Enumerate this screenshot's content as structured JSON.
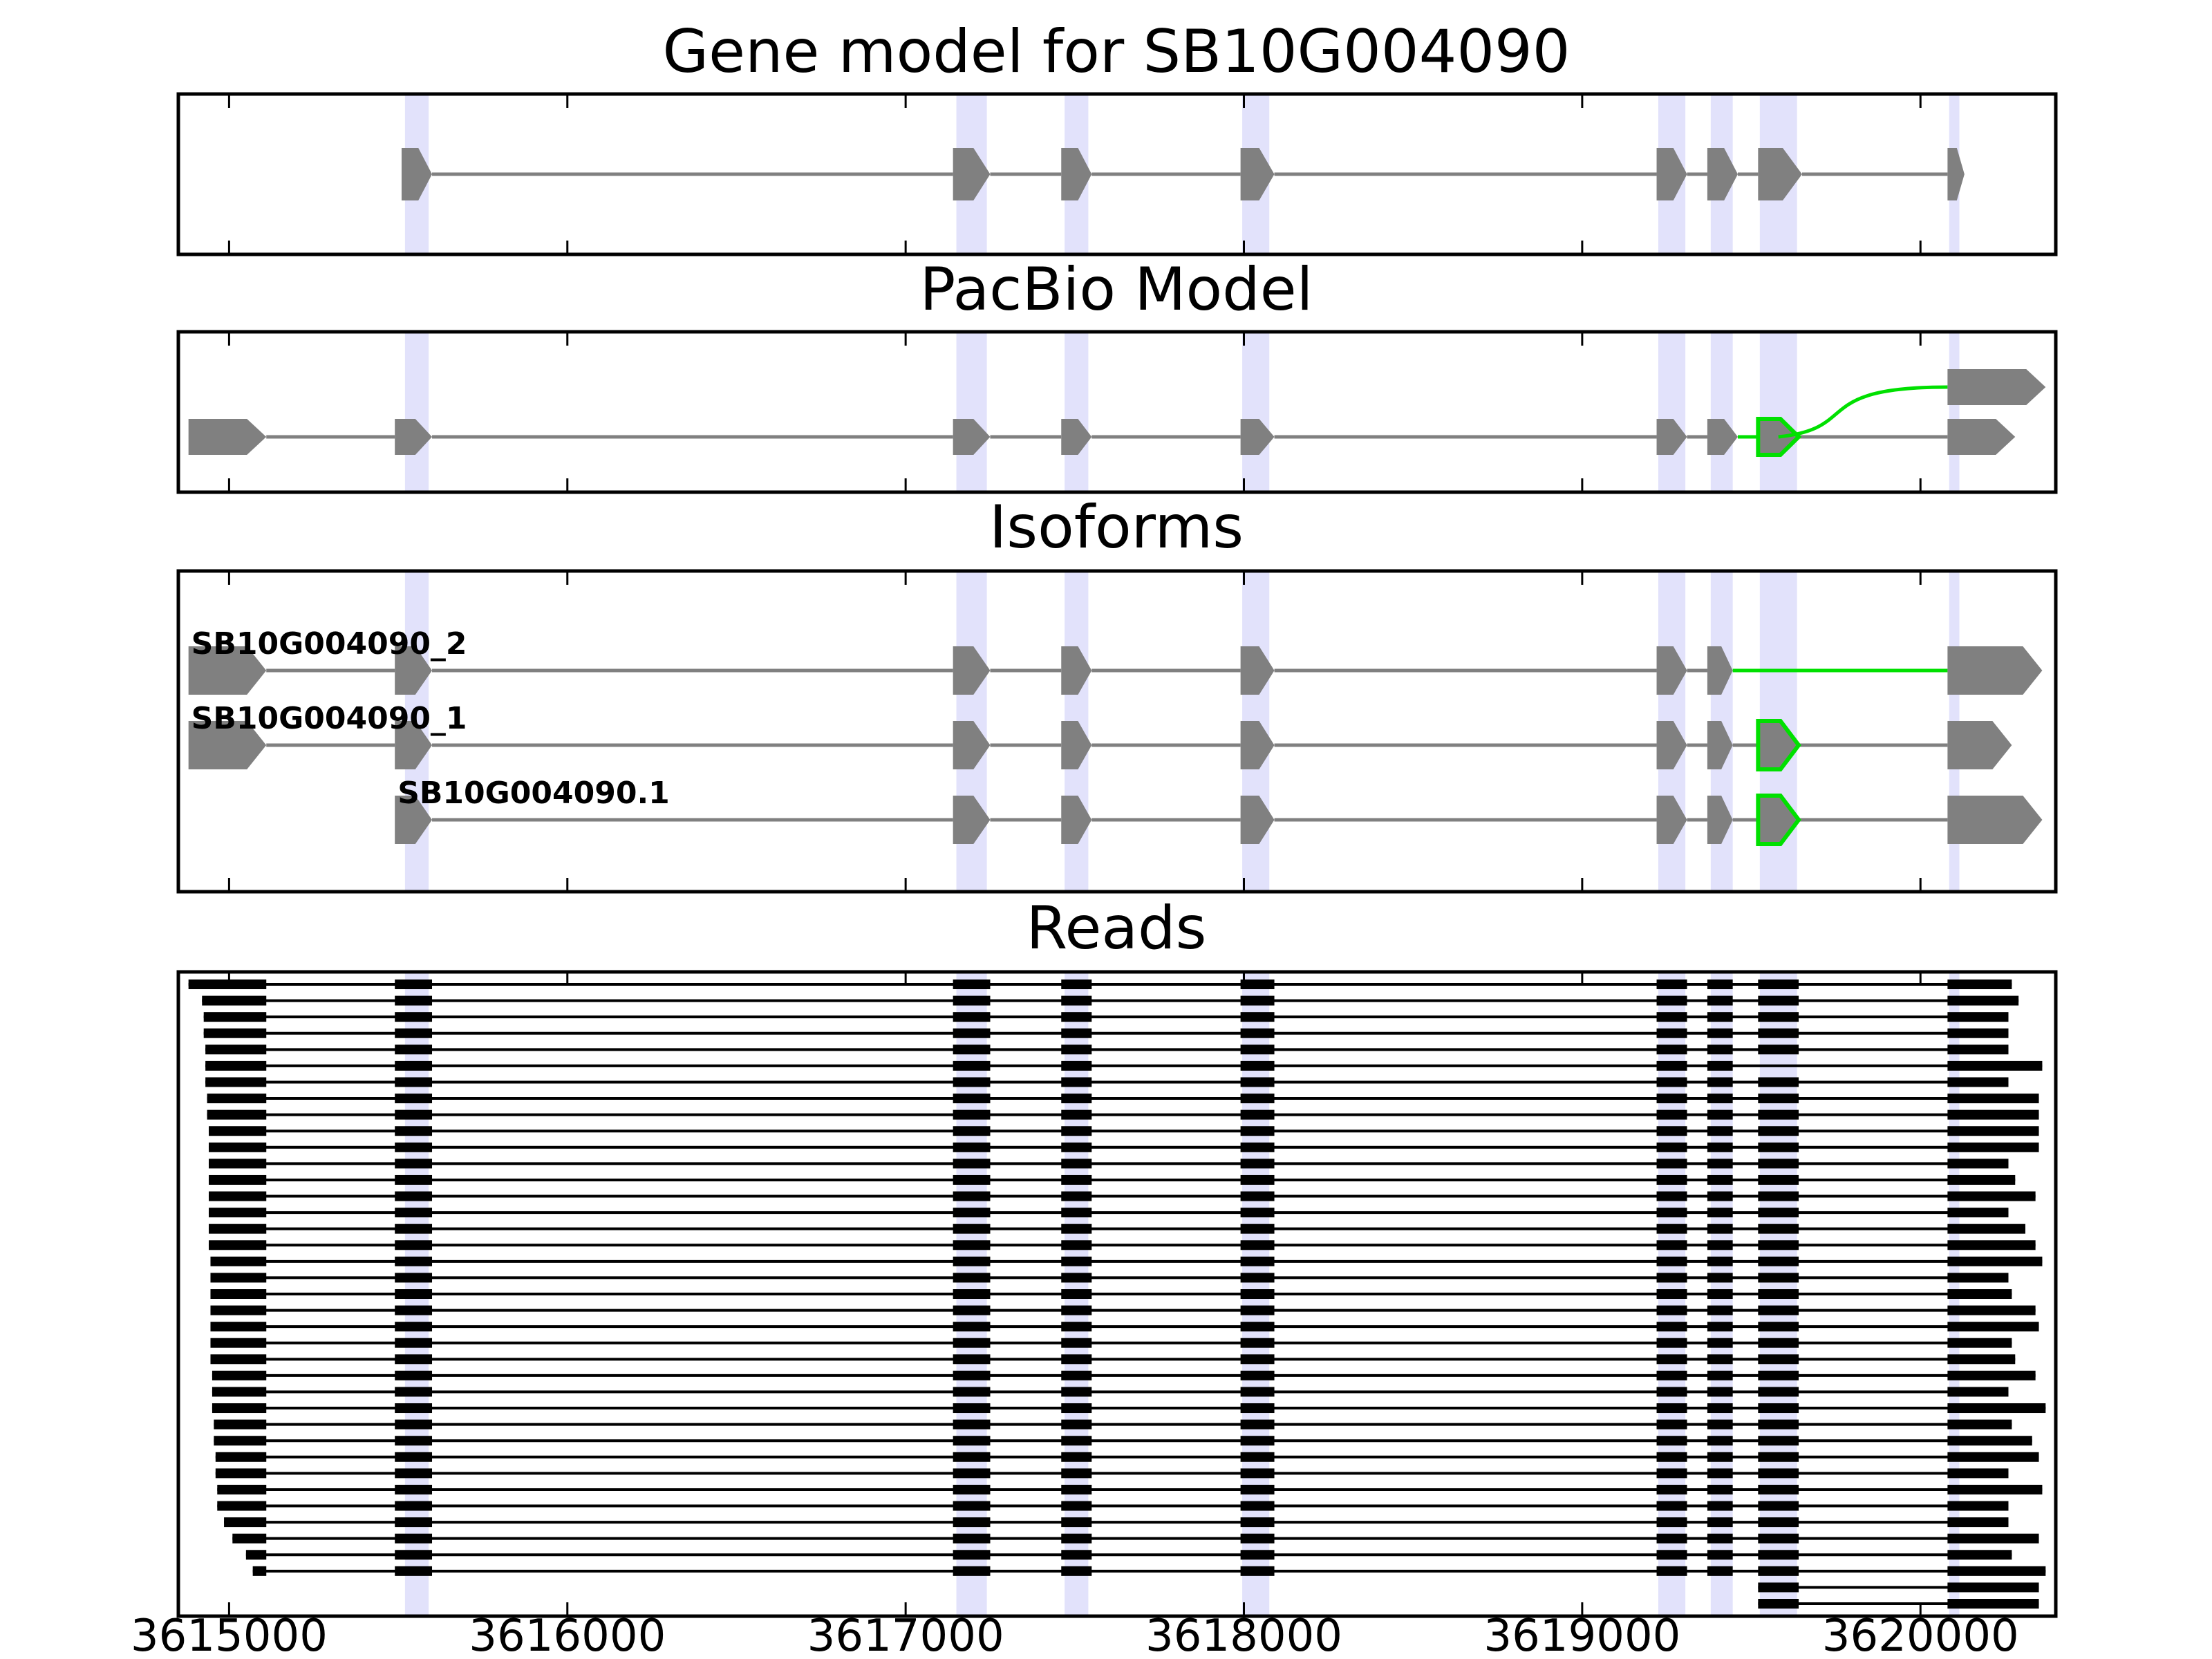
{
  "chart_data": {
    "type": "gene-structure",
    "x_axis": {
      "range": [
        3614850,
        3620400
      ],
      "ticks": [
        3615000,
        3616000,
        3617000,
        3618000,
        3619000,
        3620000
      ],
      "tick_labels": [
        "3615000",
        "3616000",
        "3617000",
        "3618000",
        "3619000",
        "3620000"
      ]
    },
    "colors": {
      "exon": "#808080",
      "intron": "#808080",
      "highlight_band": "#e2e2fb",
      "alt_splice": "#00e000",
      "read": "#000000",
      "frame": "#000000"
    },
    "highlight_bands": [
      [
        3615520,
        3615590
      ],
      [
        3617150,
        3617240
      ],
      [
        3617470,
        3617540
      ],
      [
        3617995,
        3618075
      ],
      [
        3619225,
        3619305
      ],
      [
        3619380,
        3619445
      ],
      [
        3619525,
        3619635
      ],
      [
        3620085,
        3620115
      ]
    ],
    "panels": [
      {
        "id": "gene_model",
        "title": "Gene model for SB10G004090",
        "tracks": [
          {
            "label": "",
            "exons": [
              [
                3615510,
                3615600
              ],
              [
                3617140,
                3617250
              ],
              [
                3617460,
                3617550
              ],
              [
                3617990,
                3618090
              ],
              [
                3619220,
                3619310
              ],
              [
                3619370,
                3619460
              ],
              [
                3619520,
                3619650
              ],
              [
                3620080,
                3620130
              ]
            ],
            "green_exons": [],
            "green_introns": []
          }
        ]
      },
      {
        "id": "pacbio",
        "title": "PacBio Model",
        "tracks": [
          {
            "label": "",
            "exons": [
              [
                3614880,
                3615110
              ],
              [
                3615490,
                3615600
              ],
              [
                3617140,
                3617250
              ],
              [
                3617460,
                3617550
              ],
              [
                3617990,
                3618090
              ],
              [
                3619220,
                3619310
              ],
              [
                3619370,
                3619460
              ],
              [
                3619520,
                3619640
              ],
              [
                3620080,
                3620280
              ]
            ],
            "green_exons": [
              7
            ],
            "green_introns": [
              6
            ],
            "branch": {
              "from": 3619580,
              "to": 3620080,
              "end": 3620370
            }
          }
        ]
      },
      {
        "id": "isoforms",
        "title": "Isoforms",
        "tracks": [
          {
            "label": "SB10G004090_2",
            "exons": [
              [
                3614880,
                3615110
              ],
              [
                3615490,
                3615600
              ],
              [
                3617140,
                3617250
              ],
              [
                3617460,
                3617550
              ],
              [
                3617990,
                3618090
              ],
              [
                3619220,
                3619310
              ],
              [
                3619370,
                3619445
              ],
              [
                3620080,
                3620360
              ]
            ],
            "green_exons": [],
            "green_introns": [
              6
            ]
          },
          {
            "label": "SB10G004090_1",
            "exons": [
              [
                3614880,
                3615110
              ],
              [
                3615490,
                3615600
              ],
              [
                3617140,
                3617250
              ],
              [
                3617460,
                3617550
              ],
              [
                3617990,
                3618090
              ],
              [
                3619220,
                3619310
              ],
              [
                3619370,
                3619445
              ],
              [
                3619520,
                3619640
              ],
              [
                3620080,
                3620270
              ]
            ],
            "green_exons": [
              7
            ],
            "green_introns": []
          },
          {
            "label": "SB10G004090.1",
            "exons": [
              [
                3615490,
                3615600
              ],
              [
                3617140,
                3617250
              ],
              [
                3617460,
                3617550
              ],
              [
                3617990,
                3618090
              ],
              [
                3619220,
                3619310
              ],
              [
                3619370,
                3619445
              ],
              [
                3619520,
                3619640
              ],
              [
                3620080,
                3620360
              ]
            ],
            "green_exons": [
              6
            ],
            "green_introns": []
          }
        ]
      },
      {
        "id": "reads",
        "title": "Reads",
        "read_count": 39,
        "read_starts": [
          3614880,
          3614920,
          3614925,
          3614925,
          3614930,
          3614930,
          3614930,
          3614935,
          3614935,
          3614940,
          3614940,
          3614940,
          3614940,
          3614940,
          3614940,
          3614940,
          3614940,
          3614945,
          3614945,
          3614945,
          3614945,
          3614945,
          3614945,
          3614945,
          3614950,
          3614950,
          3614950,
          3614955,
          3614955,
          3614960,
          3614960,
          3614965,
          3614965,
          3614985,
          3615010,
          3615050,
          3615070
        ],
        "read_ends": [
          3620270,
          3620290,
          3620260,
          3620260,
          3620260,
          3620360,
          3620260,
          3620350,
          3620350,
          3620350,
          3620350,
          3620260,
          3620280,
          3620340,
          3620260,
          3620310,
          3620340,
          3620360,
          3620260,
          3620270,
          3620340,
          3620350,
          3620270,
          3620280,
          3620340,
          3620260,
          3620370,
          3620270,
          3620330,
          3620350,
          3620260,
          3620360,
          3620260,
          3620260,
          3620350,
          3620270,
          3620370,
          3620350,
          3620350
        ],
        "read_blocks": [
          [
            null,
            3615110
          ],
          [
            3615490,
            3615600
          ],
          [
            3617140,
            3617250
          ],
          [
            3617460,
            3617550
          ],
          [
            3617990,
            3618090
          ],
          [
            3619220,
            3619310
          ],
          [
            3619370,
            3619445
          ],
          [
            3619520,
            3619640
          ],
          [
            3620080,
            null
          ]
        ],
        "reads_without_7th_exon": [
          5
        ],
        "partial_reads_start": 3619520,
        "partial_reads": 2
      }
    ]
  }
}
